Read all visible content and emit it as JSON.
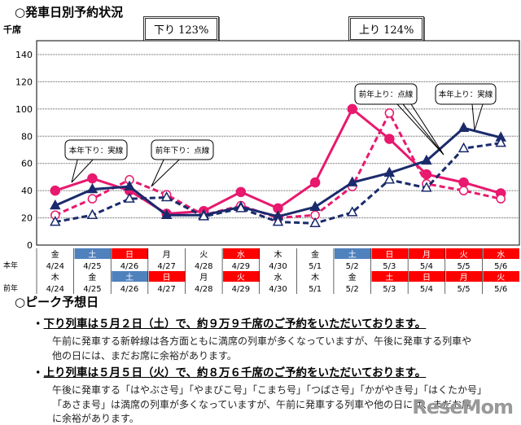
{
  "title": "○発車日別予約状況",
  "unit": "千席",
  "down_box": "下り 123%",
  "up_box": "上り 124%",
  "chart_data": {
    "type": "line",
    "ylabel": "千席",
    "ylim": [
      0,
      140
    ],
    "yticks": [
      0,
      20,
      40,
      60,
      80,
      100,
      120,
      140
    ],
    "grid": true,
    "row_labels": [
      "本年",
      "前年"
    ],
    "categories_this_year": {
      "days": [
        "金",
        "土",
        "日",
        "月",
        "火",
        "水",
        "木",
        "金",
        "土",
        "日",
        "月",
        "火",
        "水"
      ],
      "dates": [
        "4/24",
        "4/25",
        "4/26",
        "4/27",
        "4/28",
        "4/29",
        "4/30",
        "5/1",
        "5/2",
        "5/3",
        "5/4",
        "5/5",
        "5/6"
      ],
      "day_colors": [
        "",
        "blue",
        "red",
        "",
        "",
        "red",
        "",
        "",
        "blue",
        "red",
        "red",
        "red",
        "red"
      ]
    },
    "categories_last_year": {
      "days": [
        "木",
        "金",
        "土",
        "日",
        "月",
        "火",
        "水",
        "木",
        "金",
        "土",
        "日",
        "月",
        "火"
      ],
      "dates": [
        "4/24",
        "4/25",
        "4/26",
        "4/27",
        "4/28",
        "4/29",
        "4/30",
        "5/1",
        "5/2",
        "5/3",
        "5/4",
        "5/5",
        "5/6"
      ],
      "day_colors": [
        "",
        "",
        "blue",
        "red",
        "",
        "red",
        "",
        "",
        "",
        "red",
        "red",
        "red",
        "red"
      ]
    },
    "series": [
      {
        "name": "本年下り：実線",
        "color": "#e8196e",
        "dash": false,
        "marker": "filled-circle",
        "values": [
          40,
          49,
          40,
          23,
          25,
          39,
          27,
          46,
          100,
          78,
          52,
          46,
          38
        ]
      },
      {
        "name": "前年下り：点線",
        "color": "#e8196e",
        "dash": true,
        "marker": "open-circle",
        "values": [
          22,
          34,
          48,
          37,
          22,
          29,
          20,
          22,
          43,
          97,
          45,
          40,
          34
        ]
      },
      {
        "name": "本年上り：実線",
        "color": "#1a2a6c",
        "dash": false,
        "marker": "filled-triangle",
        "values": [
          29,
          41,
          43,
          22,
          22,
          28,
          21,
          28,
          46,
          53,
          62,
          86,
          79
        ]
      },
      {
        "name": "前年上り：点線",
        "color": "#1a2a6c",
        "dash": true,
        "marker": "open-triangle",
        "values": [
          17,
          22,
          34,
          35,
          21,
          27,
          17,
          16,
          24,
          48,
          42,
          71,
          75
        ]
      }
    ],
    "colors": {
      "blue": "#4f81bd",
      "red": "#ff0000"
    }
  },
  "peak": {
    "title": "○ピーク予想日",
    "down_head": "下り列車は５月２日（土）で、約９万９千席のご予約をいただいております。",
    "down_text1": "午前に発車する新幹線は各方面ともに満席の列車が多くなっていますが、午後に発車する列車や",
    "down_text2": "他の日には、まだお席に余裕があります。",
    "up_head": "上り列車は５月５日（火）で、約８万６千席のご予約をいただいております。",
    "up_text1": "午後に発車する「はやぶさ号」「やまびこ号」「こまち号」「つばさ号」「かがやき号」「はくたか号」",
    "up_text2": "「あさま号」は満席の列車が多くなっていますが、午前に発車する列車や他の日には、まだお席",
    "up_text3": "に余裕があります。"
  },
  "watermark": "ReseMom"
}
